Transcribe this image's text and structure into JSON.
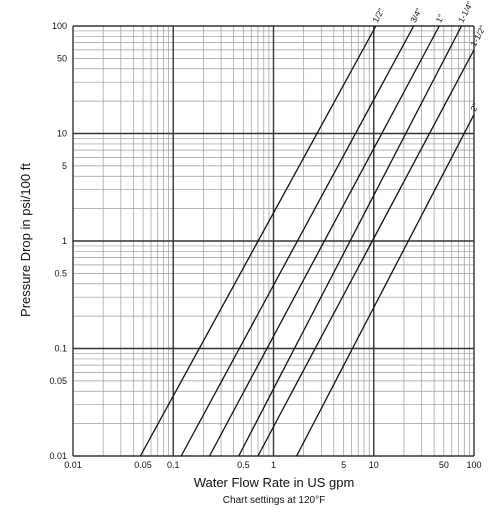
{
  "chart_data": {
    "type": "line",
    "xlabel": "Water Flow Rate in US gpm",
    "ylabel": "Pressure Drop in psi/100 ft",
    "subtitle": "Chart settings at 120°F",
    "xscale": "log",
    "yscale": "log",
    "xlim": [
      0.01,
      100
    ],
    "ylim": [
      0.01,
      100
    ],
    "grid": true,
    "x_ticks": [
      {
        "value": 0.01,
        "label": "0.01"
      },
      {
        "value": 0.05,
        "label": "0.05"
      },
      {
        "value": 0.1,
        "label": "0.1"
      },
      {
        "value": 0.5,
        "label": "0.5"
      },
      {
        "value": 1,
        "label": "1"
      },
      {
        "value": 5,
        "label": "5"
      },
      {
        "value": 10,
        "label": "10"
      },
      {
        "value": 50,
        "label": "50"
      },
      {
        "value": 100,
        "label": "100"
      }
    ],
    "y_ticks": [
      {
        "value": 100,
        "label": "100"
      },
      {
        "value": 50,
        "label": "50"
      },
      {
        "value": 10,
        "label": "10"
      },
      {
        "value": 5,
        "label": "5"
      },
      {
        "value": 1,
        "label": "1"
      },
      {
        "value": 0.5,
        "label": "0.5"
      },
      {
        "value": 0.1,
        "label": "0.1"
      },
      {
        "value": 0.05,
        "label": "0.05"
      },
      {
        "value": 0.01,
        "label": "0.01"
      }
    ],
    "series": [
      {
        "name": "1/2\"",
        "x": [
          0.047,
          10.5
        ],
        "y": [
          0.01,
          100
        ]
      },
      {
        "name": "3/4\"",
        "x": [
          0.12,
          25
        ],
        "y": [
          0.01,
          100
        ]
      },
      {
        "name": "1\"",
        "x": [
          0.23,
          45
        ],
        "y": [
          0.01,
          100
        ]
      },
      {
        "name": "1-1/4\"",
        "x": [
          0.45,
          75
        ],
        "y": [
          0.01,
          100
        ]
      },
      {
        "name": "1-1/2\"",
        "x": [
          0.7,
          100
        ],
        "y": [
          0.01,
          60
        ]
      },
      {
        "name": "2\"",
        "x": [
          1.7,
          100
        ],
        "y": [
          0.01,
          15
        ]
      }
    ]
  }
}
